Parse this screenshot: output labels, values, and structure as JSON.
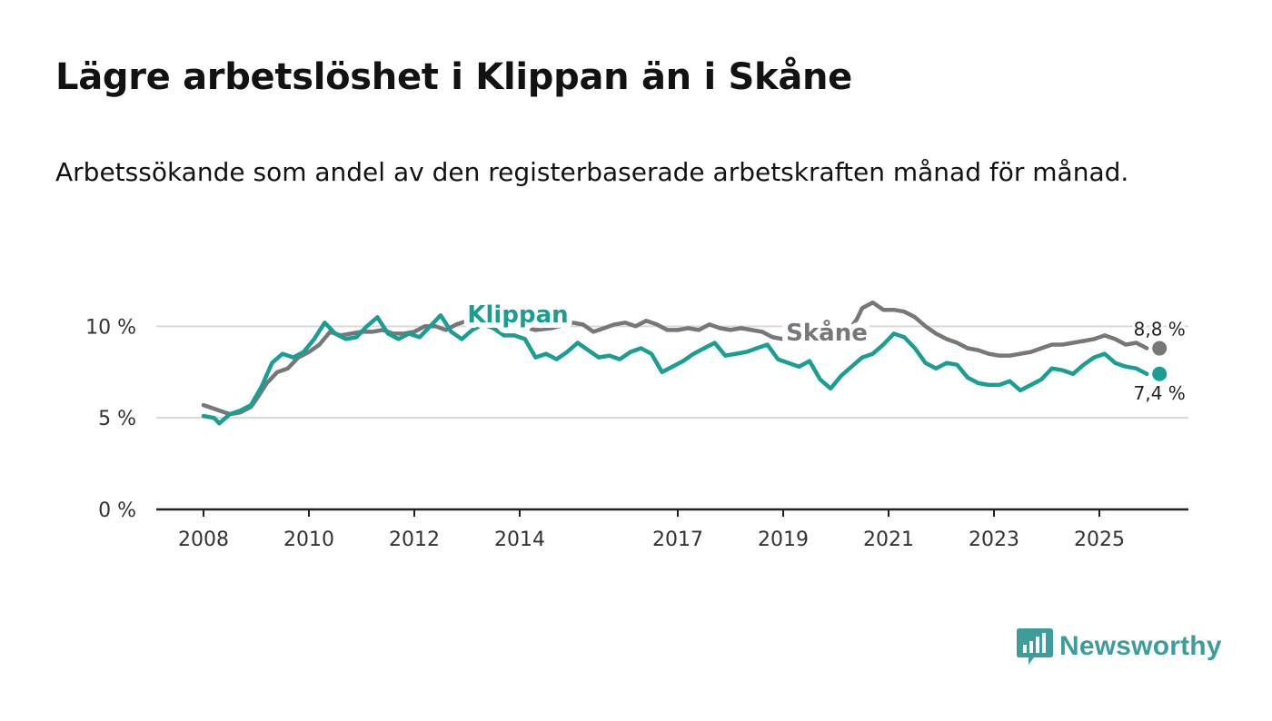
{
  "title": "Lägre arbetslöshet i Klippan än i Skåne",
  "subtitle": "Arbetssökande som andel av den registerbaserade arbetskraften månad för månad.",
  "logo_text": "Newsworthy",
  "colors": {
    "klippan": "#1a9e91",
    "skane": "#77777b",
    "axis": "#222222",
    "grid": "#d9d9d9"
  },
  "chart_data": {
    "type": "line",
    "title": "Lägre arbetslöshet i Klippan än i Skåne",
    "xlabel": "",
    "ylabel": "",
    "ylim": [
      0,
      12
    ],
    "xlim": [
      2007.6,
      2027.0
    ],
    "x_ticks": [
      {
        "value": 2008,
        "label": "2008"
      },
      {
        "value": 2010,
        "label": "2010"
      },
      {
        "value": 2012,
        "label": "2012"
      },
      {
        "value": 2014,
        "label": "2014"
      },
      {
        "value": 2017,
        "label": "2017"
      },
      {
        "value": 2019,
        "label": "2019"
      },
      {
        "value": 2021,
        "label": "2021"
      },
      {
        "value": 2023,
        "label": "2023"
      },
      {
        "value": 2025,
        "label": "2025"
      }
    ],
    "y_ticks": [
      {
        "value": 0,
        "label": "0 %"
      },
      {
        "value": 5,
        "label": "5 %"
      },
      {
        "value": 10,
        "label": "10 %"
      }
    ],
    "series": [
      {
        "name": "Skåne",
        "label": "Skåne",
        "end_label": "8,8 %",
        "color": "#77777b",
        "points": [
          [
            2008.0,
            5.7
          ],
          [
            2008.3,
            5.4
          ],
          [
            2008.5,
            5.2
          ],
          [
            2008.7,
            5.3
          ],
          [
            2008.9,
            5.6
          ],
          [
            2009.0,
            6.0
          ],
          [
            2009.2,
            6.9
          ],
          [
            2009.4,
            7.5
          ],
          [
            2009.6,
            7.7
          ],
          [
            2009.8,
            8.3
          ],
          [
            2010.0,
            8.6
          ],
          [
            2010.2,
            9.0
          ],
          [
            2010.4,
            9.7
          ],
          [
            2010.6,
            9.5
          ],
          [
            2010.8,
            9.6
          ],
          [
            2011.0,
            9.7
          ],
          [
            2011.2,
            9.7
          ],
          [
            2011.4,
            9.8
          ],
          [
            2011.6,
            9.6
          ],
          [
            2011.8,
            9.6
          ],
          [
            2012.0,
            9.7
          ],
          [
            2012.2,
            10.0
          ],
          [
            2012.4,
            10.0
          ],
          [
            2012.6,
            9.8
          ],
          [
            2012.8,
            10.1
          ],
          [
            2013.0,
            10.3
          ],
          [
            2013.3,
            10.5
          ],
          [
            2013.6,
            10.3
          ],
          [
            2014.0,
            10.0
          ],
          [
            2014.3,
            9.8
          ],
          [
            2014.6,
            9.9
          ],
          [
            2015.0,
            10.2
          ],
          [
            2015.2,
            10.1
          ],
          [
            2015.4,
            9.7
          ],
          [
            2015.6,
            9.9
          ],
          [
            2015.8,
            10.1
          ],
          [
            2016.0,
            10.2
          ],
          [
            2016.2,
            10.0
          ],
          [
            2016.4,
            10.3
          ],
          [
            2016.6,
            10.1
          ],
          [
            2016.8,
            9.8
          ],
          [
            2017.0,
            9.8
          ],
          [
            2017.2,
            9.9
          ],
          [
            2017.4,
            9.8
          ],
          [
            2017.6,
            10.1
          ],
          [
            2017.8,
            9.9
          ],
          [
            2018.0,
            9.8
          ],
          [
            2018.2,
            9.9
          ],
          [
            2018.4,
            9.8
          ],
          [
            2018.6,
            9.7
          ],
          [
            2018.8,
            9.4
          ],
          [
            2019.0,
            9.3
          ],
          [
            2019.2,
            9.2
          ],
          [
            2019.4,
            9.3
          ],
          [
            2019.6,
            9.4
          ],
          [
            2019.8,
            9.5
          ],
          [
            2020.0,
            9.4
          ],
          [
            2020.2,
            9.6
          ],
          [
            2020.4,
            10.4
          ],
          [
            2020.5,
            11.0
          ],
          [
            2020.7,
            11.3
          ],
          [
            2020.9,
            10.9
          ],
          [
            2021.1,
            10.9
          ],
          [
            2021.3,
            10.8
          ],
          [
            2021.5,
            10.5
          ],
          [
            2021.7,
            10.0
          ],
          [
            2021.9,
            9.6
          ],
          [
            2022.1,
            9.3
          ],
          [
            2022.3,
            9.1
          ],
          [
            2022.5,
            8.8
          ],
          [
            2022.7,
            8.7
          ],
          [
            2022.9,
            8.5
          ],
          [
            2023.1,
            8.4
          ],
          [
            2023.3,
            8.4
          ],
          [
            2023.5,
            8.5
          ],
          [
            2023.7,
            8.6
          ],
          [
            2023.9,
            8.8
          ],
          [
            2024.1,
            9.0
          ],
          [
            2024.3,
            9.0
          ],
          [
            2024.5,
            9.1
          ],
          [
            2024.7,
            9.2
          ],
          [
            2024.9,
            9.3
          ],
          [
            2025.1,
            9.5
          ],
          [
            2025.3,
            9.3
          ],
          [
            2025.5,
            9.0
          ],
          [
            2025.7,
            9.1
          ],
          [
            2025.9,
            8.8
          ]
        ]
      },
      {
        "name": "Klippan",
        "label": "Klippan",
        "end_label": "7,4 %",
        "color": "#1a9e91",
        "points": [
          [
            2008.0,
            5.1
          ],
          [
            2008.2,
            5.0
          ],
          [
            2008.3,
            4.7
          ],
          [
            2008.5,
            5.2
          ],
          [
            2008.7,
            5.4
          ],
          [
            2008.9,
            5.7
          ],
          [
            2009.1,
            6.7
          ],
          [
            2009.3,
            8.0
          ],
          [
            2009.5,
            8.5
          ],
          [
            2009.7,
            8.3
          ],
          [
            2009.9,
            8.6
          ],
          [
            2010.1,
            9.3
          ],
          [
            2010.3,
            10.2
          ],
          [
            2010.5,
            9.6
          ],
          [
            2010.7,
            9.3
          ],
          [
            2010.9,
            9.4
          ],
          [
            2011.1,
            10.0
          ],
          [
            2011.3,
            10.5
          ],
          [
            2011.5,
            9.6
          ],
          [
            2011.7,
            9.3
          ],
          [
            2011.9,
            9.6
          ],
          [
            2012.1,
            9.4
          ],
          [
            2012.3,
            10.0
          ],
          [
            2012.5,
            10.6
          ],
          [
            2012.7,
            9.7
          ],
          [
            2012.9,
            9.3
          ],
          [
            2013.1,
            9.8
          ],
          [
            2013.3,
            10.1
          ],
          [
            2013.5,
            9.9
          ],
          [
            2013.7,
            9.5
          ],
          [
            2013.9,
            9.5
          ],
          [
            2014.1,
            9.3
          ],
          [
            2014.3,
            8.3
          ],
          [
            2014.5,
            8.5
          ],
          [
            2014.7,
            8.2
          ],
          [
            2014.9,
            8.6
          ],
          [
            2015.1,
            9.1
          ],
          [
            2015.3,
            8.7
          ],
          [
            2015.5,
            8.3
          ],
          [
            2015.7,
            8.4
          ],
          [
            2015.9,
            8.2
          ],
          [
            2016.1,
            8.6
          ],
          [
            2016.3,
            8.8
          ],
          [
            2016.5,
            8.5
          ],
          [
            2016.7,
            7.5
          ],
          [
            2016.9,
            7.8
          ],
          [
            2017.1,
            8.1
          ],
          [
            2017.3,
            8.5
          ],
          [
            2017.5,
            8.8
          ],
          [
            2017.7,
            9.1
          ],
          [
            2017.9,
            8.4
          ],
          [
            2018.1,
            8.5
          ],
          [
            2018.3,
            8.6
          ],
          [
            2018.5,
            8.8
          ],
          [
            2018.7,
            9.0
          ],
          [
            2018.9,
            8.2
          ],
          [
            2019.1,
            8.0
          ],
          [
            2019.3,
            7.8
          ],
          [
            2019.5,
            8.1
          ],
          [
            2019.7,
            7.1
          ],
          [
            2019.9,
            6.6
          ],
          [
            2020.1,
            7.3
          ],
          [
            2020.3,
            7.8
          ],
          [
            2020.5,
            8.3
          ],
          [
            2020.7,
            8.5
          ],
          [
            2020.9,
            9.0
          ],
          [
            2021.1,
            9.6
          ],
          [
            2021.3,
            9.4
          ],
          [
            2021.5,
            8.8
          ],
          [
            2021.7,
            8.0
          ],
          [
            2021.9,
            7.7
          ],
          [
            2022.1,
            8.0
          ],
          [
            2022.3,
            7.9
          ],
          [
            2022.5,
            7.2
          ],
          [
            2022.7,
            6.9
          ],
          [
            2022.9,
            6.8
          ],
          [
            2023.1,
            6.8
          ],
          [
            2023.3,
            7.0
          ],
          [
            2023.5,
            6.5
          ],
          [
            2023.7,
            6.8
          ],
          [
            2023.9,
            7.1
          ],
          [
            2024.1,
            7.7
          ],
          [
            2024.3,
            7.6
          ],
          [
            2024.5,
            7.4
          ],
          [
            2024.7,
            7.9
          ],
          [
            2024.9,
            8.3
          ],
          [
            2025.1,
            8.5
          ],
          [
            2025.3,
            8.0
          ],
          [
            2025.5,
            7.8
          ],
          [
            2025.7,
            7.7
          ],
          [
            2025.9,
            7.4
          ]
        ]
      }
    ]
  }
}
